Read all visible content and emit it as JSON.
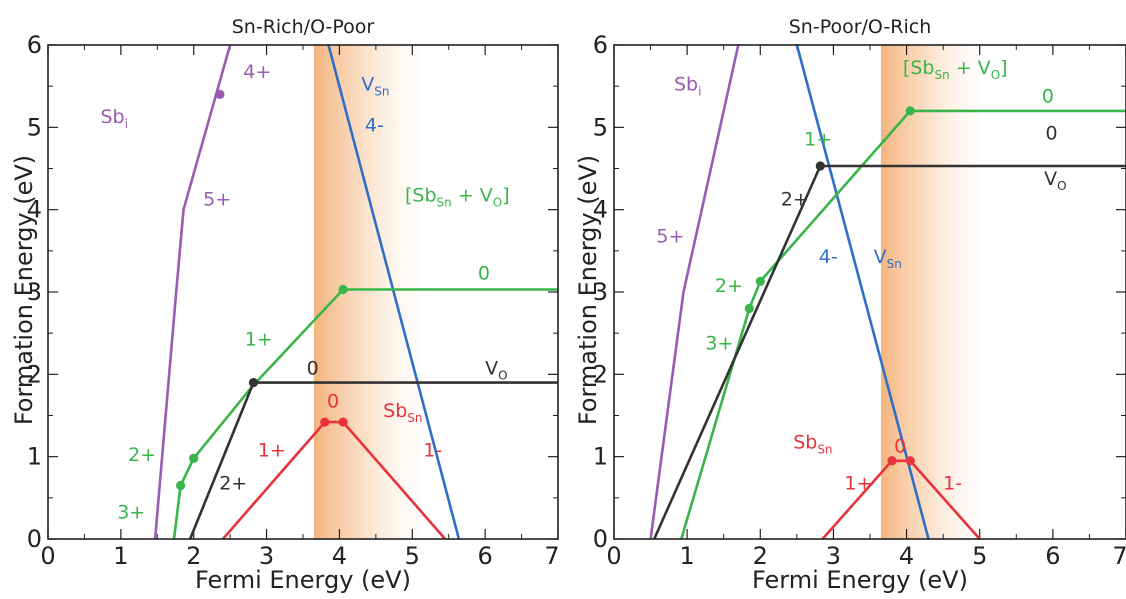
{
  "chart_data": [
    {
      "type": "line",
      "title": "Sn-Rich/O-Poor",
      "xlabel": "Fermi Energy (eV)",
      "ylabel": "Formation Energy (eV)",
      "xlim": [
        0,
        7
      ],
      "ylim": [
        0,
        6
      ],
      "x_ticks": [
        "0",
        "1",
        "2",
        "3",
        "4",
        "5",
        "6",
        "7"
      ],
      "y_ticks": [
        "0",
        "1",
        "2",
        "3",
        "4",
        "5",
        "6"
      ],
      "shaded_band": [
        3.65,
        5.1
      ],
      "series": [
        {
          "color": "#9a5bb0",
          "points": [
            [
              1.47,
              0
            ],
            [
              1.76,
              3
            ],
            [
              1.86,
              4
            ],
            [
              2.5,
              6
            ]
          ],
          "markers": [
            [
              2.36,
              5.4
            ]
          ]
        },
        {
          "color": "#2f6fc9",
          "points": [
            [
              3.85,
              6
            ],
            [
              5.64,
              0
            ]
          ],
          "markers": []
        },
        {
          "color": "#39b54a",
          "points": [
            [
              1.73,
              0
            ],
            [
              1.82,
              0.65
            ],
            [
              2.0,
              0.98
            ],
            [
              2.8,
              1.85
            ],
            [
              4.05,
              3.03
            ],
            [
              7.0,
              3.03
            ]
          ],
          "markers": [
            [
              1.82,
              0.65
            ],
            [
              2.0,
              0.98
            ],
            [
              4.05,
              3.03
            ]
          ]
        },
        {
          "color": "#333333",
          "points": [
            [
              1.95,
              0
            ],
            [
              2.82,
              1.9
            ],
            [
              7.0,
              1.9
            ]
          ],
          "markers": [
            [
              2.82,
              1.9
            ]
          ]
        },
        {
          "color": "#e8323c",
          "points": [
            [
              2.4,
              0
            ],
            [
              3.8,
              1.42
            ],
            [
              4.05,
              1.42
            ],
            [
              5.45,
              0
            ]
          ],
          "markers": [
            [
              3.8,
              1.42
            ],
            [
              4.05,
              1.42
            ]
          ]
        }
      ],
      "labels": [
        {
          "text": "4+",
          "x": 2.68,
          "y": 5.6,
          "color": "#9a5bb0"
        },
        {
          "text": "5+",
          "x": 2.13,
          "y": 4.05,
          "color": "#9a5bb0"
        },
        {
          "base": "Sb",
          "sub": "i",
          "x": 0.72,
          "y": 5.05,
          "color": "#9a5bb0"
        },
        {
          "base": "V",
          "sub": "Sn",
          "x": 4.3,
          "y": 5.45,
          "color": "#2f6fc9"
        },
        {
          "text": "4-",
          "x": 4.35,
          "y": 4.95,
          "color": "#2f6fc9"
        },
        {
          "text": "[Sb",
          "sub": "Sn",
          "tail": " + V",
          "sub2": "O",
          "end": "]",
          "x": 4.9,
          "y": 4.1,
          "color": "#39b54a"
        },
        {
          "text": "0",
          "x": 5.9,
          "y": 3.15,
          "color": "#39b54a"
        },
        {
          "text": "1+",
          "x": 2.7,
          "y": 2.35,
          "color": "#39b54a"
        },
        {
          "text": "2+",
          "x": 1.1,
          "y": 0.95,
          "color": "#39b54a"
        },
        {
          "text": "3+",
          "x": 0.95,
          "y": 0.25,
          "color": "#39b54a"
        },
        {
          "text": "0",
          "x": 3.55,
          "y": 2.0,
          "color": "#333333"
        },
        {
          "base": "V",
          "sub": "O",
          "x": 6.0,
          "y": 2.0,
          "color": "#333333"
        },
        {
          "text": "2+",
          "x": 2.35,
          "y": 0.6,
          "color": "#333333"
        },
        {
          "text": "0",
          "x": 3.83,
          "y": 1.6,
          "color": "#e8323c"
        },
        {
          "base": "Sb",
          "sub": "Sn",
          "x": 4.6,
          "y": 1.48,
          "color": "#e8323c"
        },
        {
          "text": "1+",
          "x": 2.88,
          "y": 1.0,
          "color": "#e8323c"
        },
        {
          "text": "1-",
          "x": 5.15,
          "y": 1.0,
          "color": "#e8323c"
        }
      ]
    },
    {
      "type": "line",
      "title": "Sn-Poor/O-Rich",
      "xlabel": "Fermi Energy (eV)",
      "ylabel": "Formation Energy (eV)",
      "xlim": [
        0,
        7
      ],
      "ylim": [
        0,
        6
      ],
      "x_ticks": [
        "0",
        "1",
        "2",
        "3",
        "4",
        "5",
        "6",
        "7"
      ],
      "y_ticks": [
        "0",
        "1",
        "2",
        "3",
        "4",
        "5",
        "6"
      ],
      "shaded_band": [
        3.65,
        5.0
      ],
      "series": [
        {
          "color": "#9a5bb0",
          "points": [
            [
              0.5,
              0
            ],
            [
              0.95,
              3
            ],
            [
              1.7,
              6
            ]
          ],
          "markers": []
        },
        {
          "color": "#2f6fc9",
          "points": [
            [
              2.5,
              6
            ],
            [
              4.3,
              0
            ]
          ],
          "markers": []
        },
        {
          "color": "#39b54a",
          "points": [
            [
              0.92,
              0
            ],
            [
              1.85,
              2.8
            ],
            [
              2.0,
              3.13
            ],
            [
              4.05,
              5.2
            ],
            [
              7.0,
              5.2
            ]
          ],
          "markers": [
            [
              1.85,
              2.8
            ],
            [
              2.0,
              3.13
            ],
            [
              4.05,
              5.2
            ]
          ]
        },
        {
          "color": "#333333",
          "points": [
            [
              0.55,
              0
            ],
            [
              2.82,
              4.53
            ],
            [
              7.0,
              4.53
            ]
          ],
          "markers": [
            [
              2.82,
              4.53
            ]
          ]
        },
        {
          "color": "#e8323c",
          "points": [
            [
              2.85,
              0
            ],
            [
              3.8,
              0.95
            ],
            [
              4.05,
              0.95
            ],
            [
              5.0,
              0
            ]
          ],
          "markers": [
            [
              3.8,
              0.95
            ],
            [
              4.05,
              0.95
            ]
          ]
        }
      ],
      "labels": [
        {
          "base": "Sb",
          "sub": "i",
          "x": 0.82,
          "y": 5.45,
          "color": "#9a5bb0"
        },
        {
          "text": "5+",
          "x": 0.58,
          "y": 3.6,
          "color": "#9a5bb0"
        },
        {
          "text": "[Sb",
          "sub": "Sn",
          "tail": " + V",
          "sub2": "O",
          "end": "]",
          "x": 3.95,
          "y": 5.65,
          "color": "#39b54a"
        },
        {
          "text": "0",
          "x": 5.85,
          "y": 5.3,
          "color": "#39b54a"
        },
        {
          "text": "1+",
          "x": 2.6,
          "y": 4.78,
          "color": "#39b54a"
        },
        {
          "text": "2+",
          "x": 1.38,
          "y": 3.0,
          "color": "#39b54a"
        },
        {
          "text": "3+",
          "x": 1.25,
          "y": 2.3,
          "color": "#39b54a"
        },
        {
          "text": "0",
          "x": 5.9,
          "y": 4.85,
          "color": "#333333"
        },
        {
          "base": "V",
          "sub": "O",
          "x": 5.88,
          "y": 4.3,
          "color": "#333333"
        },
        {
          "text": "2+",
          "x": 2.28,
          "y": 4.05,
          "color": "#333333"
        },
        {
          "text": "4-",
          "x": 2.8,
          "y": 3.35,
          "color": "#2f6fc9"
        },
        {
          "base": "V",
          "sub": "Sn",
          "x": 3.55,
          "y": 3.35,
          "color": "#2f6fc9"
        },
        {
          "base": "Sb",
          "sub": "Sn",
          "x": 2.45,
          "y": 1.1,
          "color": "#e8323c"
        },
        {
          "text": "0",
          "x": 3.83,
          "y": 1.05,
          "color": "#e8323c"
        },
        {
          "text": "1+",
          "x": 3.15,
          "y": 0.6,
          "color": "#e8323c"
        },
        {
          "text": "1-",
          "x": 4.5,
          "y": 0.6,
          "color": "#e8323c"
        }
      ]
    }
  ]
}
